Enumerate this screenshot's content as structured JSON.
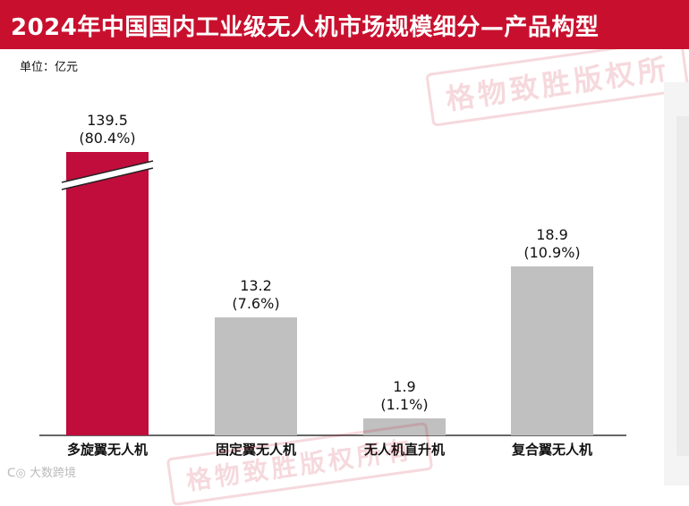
{
  "header": {
    "title": "2024年中国国内工业级无人机市场规模细分—产品构型"
  },
  "unit_label": "单位：亿元",
  "watermarks": {
    "stamp_top": "格物致胜版权所",
    "stamp_bottom": "格物致胜版权所有",
    "footer_logo": "大数跨境"
  },
  "colors": {
    "accent": "#c8102e",
    "highlight_bar": "#c00d3c",
    "other_bars": "#c0c0c0",
    "axis": "#333333"
  },
  "chart_data": {
    "type": "bar",
    "categories": [
      "多旋翼无人机",
      "固定翼无人机",
      "无人机直升机",
      "复合翼无人机"
    ],
    "values": [
      139.5,
      13.2,
      1.9,
      18.9
    ],
    "value_labels": [
      "139.5",
      "13.2",
      "1.9",
      "18.9"
    ],
    "percent_labels": [
      "(80.4%)",
      "(7.6%)",
      "(1.1%)",
      "(10.9%)"
    ],
    "highlight_index": 0,
    "axis_break_on_index": 0,
    "title": "2024年中国国内工业级无人机市场规模细分—产品构型",
    "ylabel": "单位：亿元",
    "xlabel": "",
    "grid": false,
    "legend": "none"
  }
}
